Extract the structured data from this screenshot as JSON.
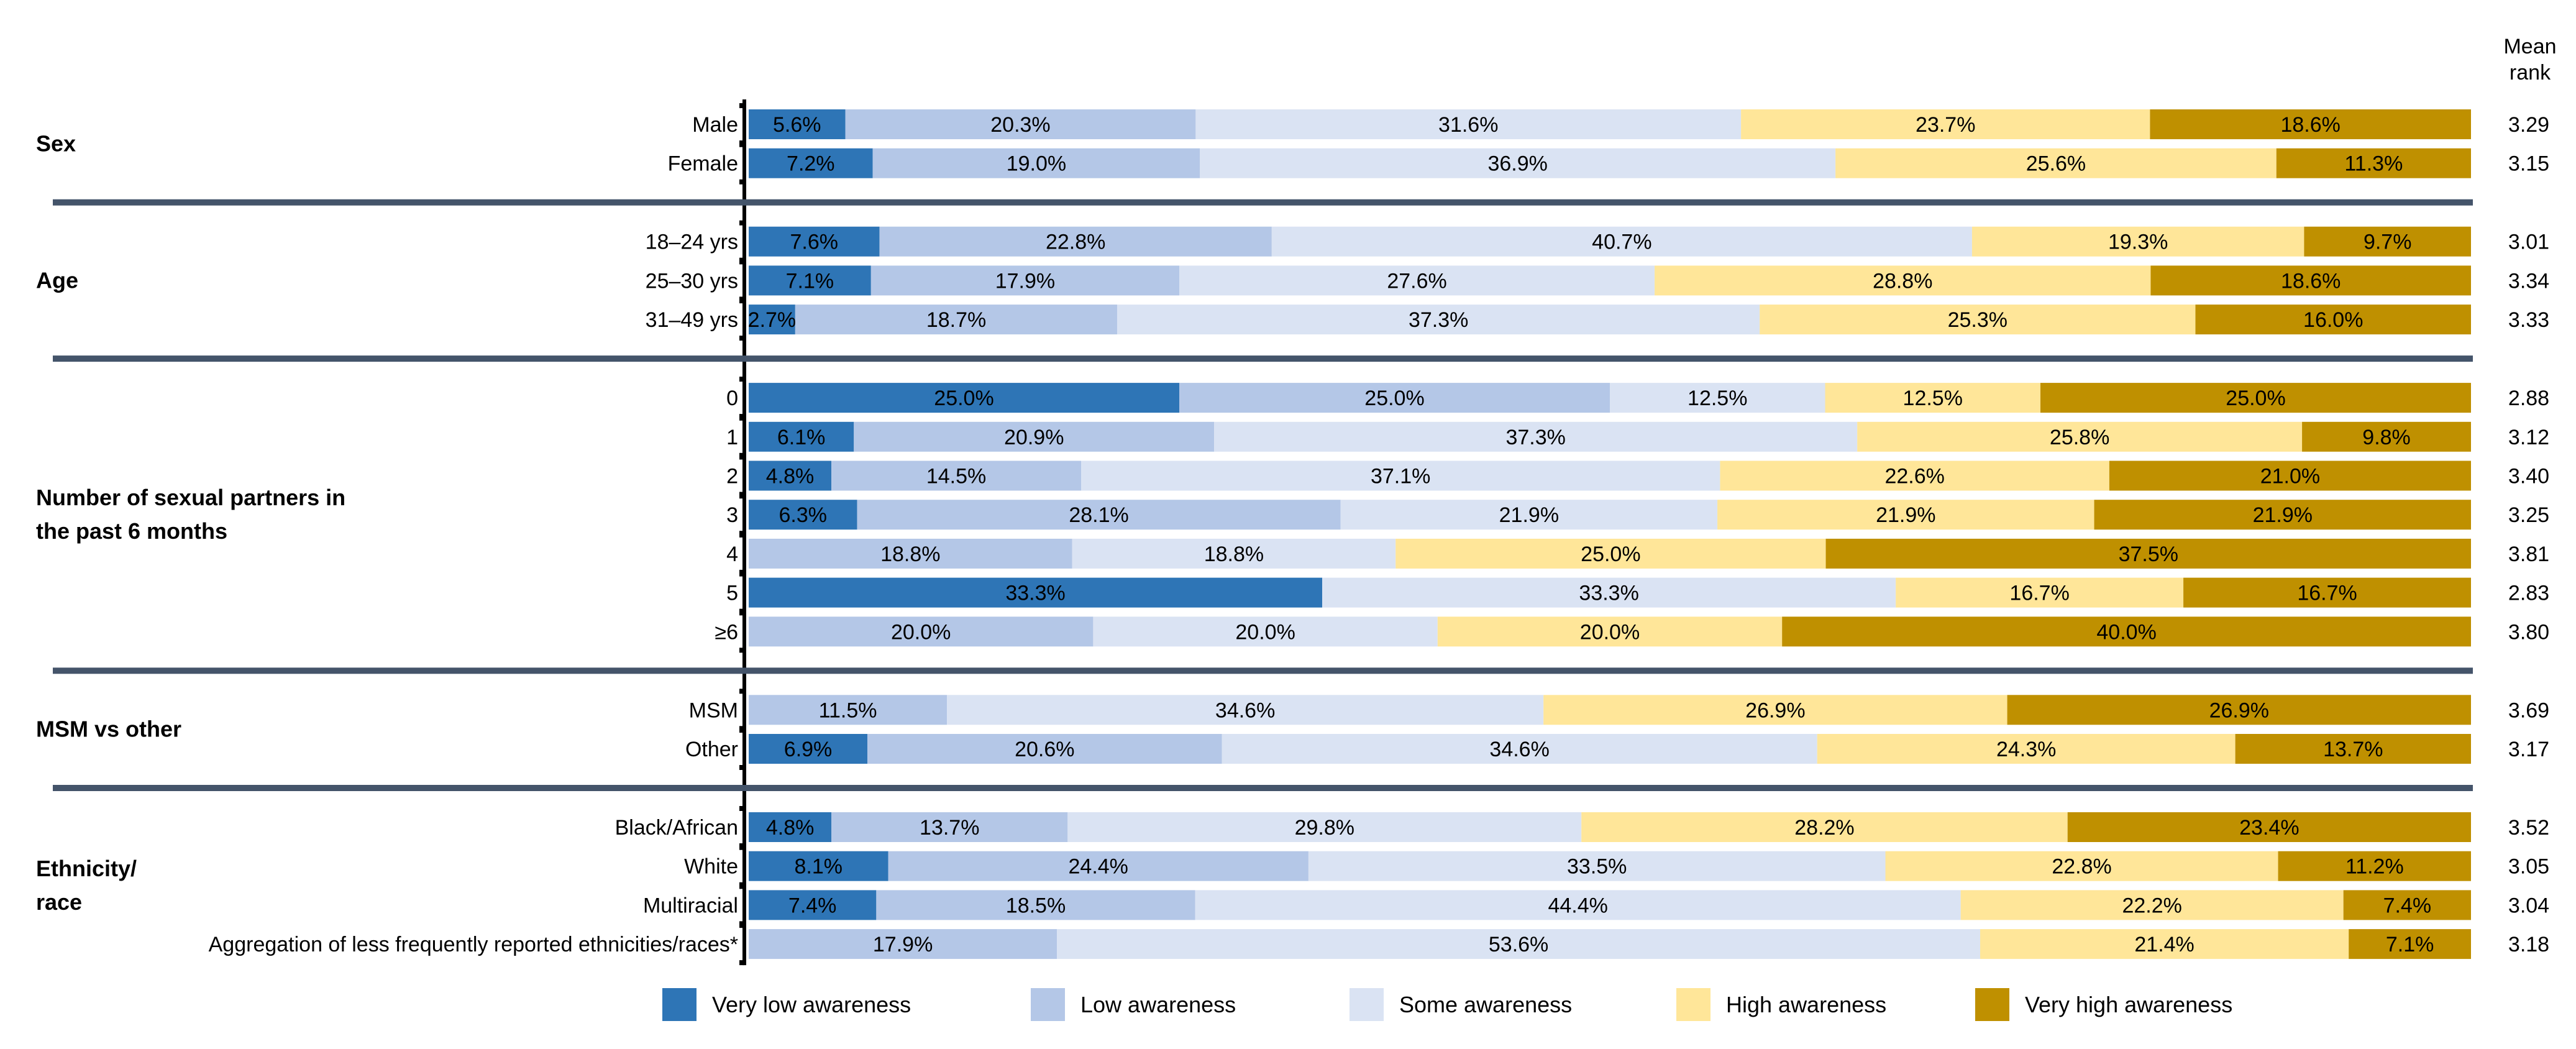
{
  "chart_data": {
    "type": "bar",
    "orientation": "horizontal-stacked-100",
    "mean_rank_header": [
      "Mean",
      "rank"
    ],
    "legend": [
      "Very low awareness",
      "Low awareness",
      "Some awareness",
      "High awareness",
      "Very high awareness"
    ],
    "colors": [
      "#2e75b6",
      "#b4c7e7",
      "#dae3f3",
      "#ffe699",
      "#bf9000"
    ],
    "separator_color": "#44546a",
    "legend_placement": "bottom",
    "groups": [
      {
        "label": [
          "Sex"
        ],
        "rows": [
          {
            "label": "Male",
            "values": [
              5.6,
              20.3,
              31.6,
              23.7,
              18.6
            ],
            "mean_rank": "3.29"
          },
          {
            "label": "Female",
            "values": [
              7.2,
              19.0,
              36.9,
              25.6,
              11.3
            ],
            "mean_rank": "3.15"
          }
        ]
      },
      {
        "label": [
          "Age"
        ],
        "rows": [
          {
            "label": "18–24 yrs",
            "values": [
              7.6,
              22.8,
              40.7,
              19.3,
              9.7
            ],
            "mean_rank": "3.01"
          },
          {
            "label": "25–30 yrs",
            "values": [
              7.1,
              17.9,
              27.6,
              28.8,
              18.6
            ],
            "mean_rank": "3.34"
          },
          {
            "label": "31–49 yrs",
            "values": [
              2.7,
              18.7,
              37.3,
              25.3,
              16.0
            ],
            "mean_rank": "3.33"
          }
        ]
      },
      {
        "label": [
          "Number of sexual partners in",
          "the past 6 months"
        ],
        "rows": [
          {
            "label": "0",
            "values": [
              25.0,
              25.0,
              12.5,
              12.5,
              25.0
            ],
            "mean_rank": "2.88"
          },
          {
            "label": "1",
            "values": [
              6.1,
              20.9,
              37.3,
              25.8,
              9.8
            ],
            "mean_rank": "3.12"
          },
          {
            "label": "2",
            "values": [
              4.8,
              14.5,
              37.1,
              22.6,
              21.0
            ],
            "mean_rank": "3.40"
          },
          {
            "label": "3",
            "values": [
              6.3,
              28.1,
              21.9,
              21.9,
              21.9
            ],
            "mean_rank": "3.25"
          },
          {
            "label": "4",
            "values": [
              0,
              18.8,
              18.8,
              25.0,
              37.5
            ],
            "mean_rank": "3.81"
          },
          {
            "label": "5",
            "values": [
              33.3,
              0,
              33.3,
              16.7,
              16.7
            ],
            "mean_rank": "2.83"
          },
          {
            "label": "≥6",
            "values": [
              0,
              20.0,
              20.0,
              20.0,
              40.0
            ],
            "mean_rank": "3.80"
          }
        ]
      },
      {
        "label": [
          "MSM vs  other"
        ],
        "rows": [
          {
            "label": "MSM",
            "values": [
              0,
              11.5,
              34.6,
              26.9,
              26.9
            ],
            "mean_rank": "3.69"
          },
          {
            "label": "Other",
            "values": [
              6.9,
              20.6,
              34.6,
              24.3,
              13.7
            ],
            "mean_rank": "3.17"
          }
        ]
      },
      {
        "label": [
          "Ethnicity/",
          "race"
        ],
        "rows": [
          {
            "label": "Black/African",
            "values": [
              4.8,
              13.7,
              29.8,
              28.2,
              23.4
            ],
            "mean_rank": "3.52"
          },
          {
            "label": "White",
            "values": [
              8.1,
              24.4,
              33.5,
              22.8,
              11.2
            ],
            "mean_rank": "3.05"
          },
          {
            "label": "Multiracial",
            "values": [
              7.4,
              18.5,
              44.4,
              22.2,
              7.4
            ],
            "mean_rank": "3.04"
          },
          {
            "label": "Aggregation of less frequently reported ethnicities/races*",
            "values": [
              0,
              17.9,
              53.6,
              21.4,
              7.1
            ],
            "mean_rank": "3.18"
          }
        ]
      }
    ]
  }
}
